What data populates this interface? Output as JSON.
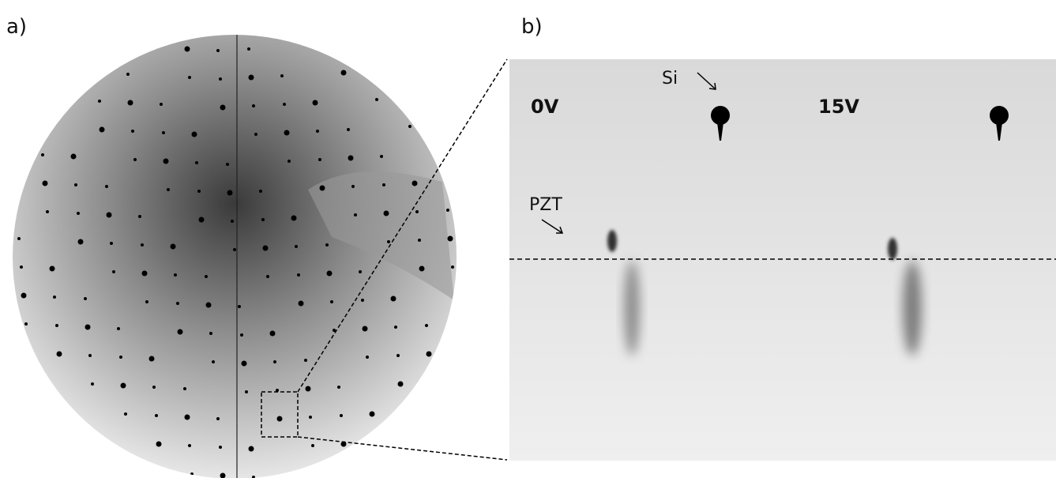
{
  "panel_a": {
    "label": "a)"
  },
  "panel_b": {
    "label": "b)",
    "voltages": [
      "0V",
      "15V"
    ],
    "annotations": [
      "Si",
      "PZT"
    ]
  }
}
